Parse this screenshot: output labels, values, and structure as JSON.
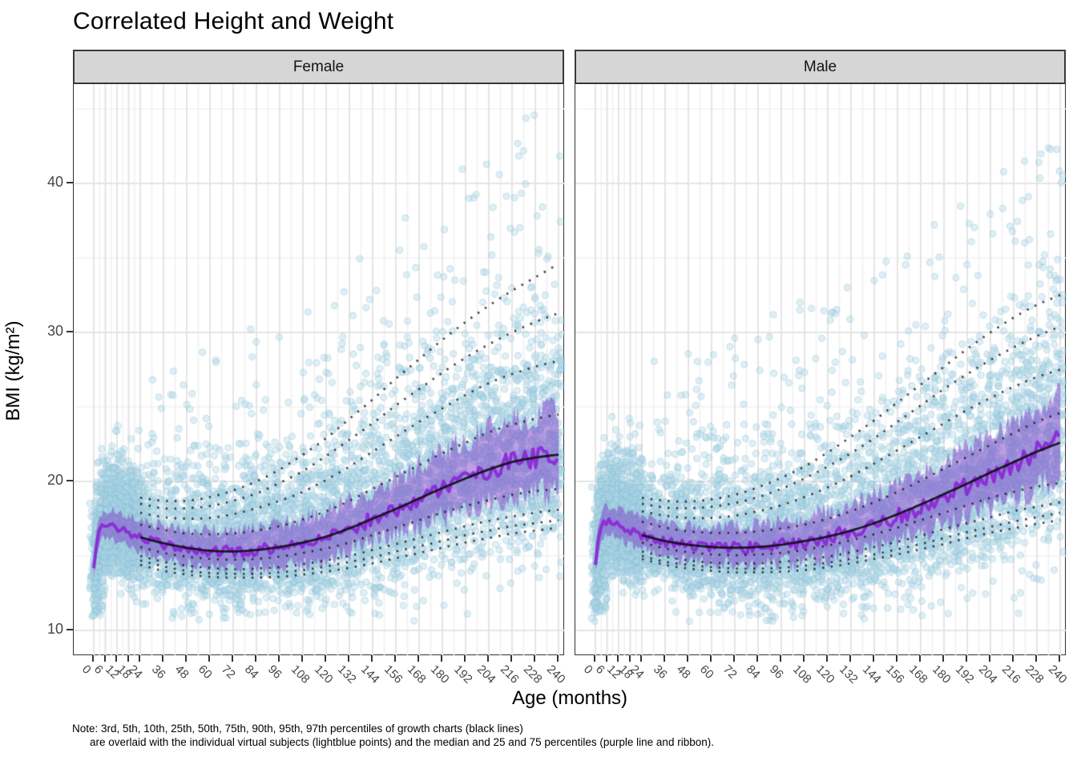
{
  "page": {
    "title": "Correlated Height and Weight",
    "note_line1": "Note: 3rd, 5th, 10th, 25th, 50th, 75th, 90th, 95th, 97th percentiles of growth charts (black lines)",
    "note_line2": "are overlaid with the individual virtual subjects (lightblue points) and the median and 25 and 75 percentiles (purple line and ribbon)."
  },
  "chart_data": {
    "type": "scatter",
    "title": "Correlated Height and Weight",
    "xlabel": "Age (months)",
    "ylabel": "BMI (kg/m²)",
    "facets": [
      {
        "label": "Female"
      },
      {
        "label": "Male"
      }
    ],
    "x_ticks": [
      0,
      6,
      12,
      18,
      24,
      36,
      48,
      60,
      72,
      84,
      96,
      108,
      120,
      132,
      144,
      156,
      168,
      180,
      192,
      204,
      216,
      228,
      240
    ],
    "x_minor": [
      3,
      9,
      15,
      21,
      30,
      42,
      54,
      66,
      78,
      90,
      102,
      114,
      126,
      138,
      150,
      162,
      174,
      186,
      198,
      210,
      222,
      234,
      246
    ],
    "y_ticks": [
      10,
      20,
      30,
      40
    ],
    "y_minor": [
      15,
      25,
      35,
      45
    ],
    "xlim": [
      -10.5,
      243.5
    ],
    "ylim": [
      8.3,
      46.7
    ],
    "grid": true,
    "legend": "none",
    "percentiles_shown": [
      "3rd",
      "5th",
      "10th",
      "25th",
      "50th",
      "75th",
      "90th",
      "95th",
      "97th"
    ],
    "growth_chart_ages": [
      24,
      36,
      48,
      60,
      72,
      84,
      96,
      108,
      120,
      132,
      144,
      156,
      168,
      180,
      192,
      204,
      216,
      228,
      240
    ],
    "growth_chart": {
      "Female": {
        "p3": [
          14.4,
          14.0,
          13.75,
          13.6,
          13.55,
          13.55,
          13.6,
          13.75,
          13.95,
          14.2,
          14.5,
          14.85,
          15.2,
          15.55,
          15.9,
          16.2,
          16.5,
          16.7,
          16.9
        ],
        "p5": [
          14.7,
          14.3,
          14.0,
          13.85,
          13.8,
          13.8,
          13.9,
          14.05,
          14.3,
          14.6,
          14.9,
          15.3,
          15.65,
          16.0,
          16.4,
          16.7,
          17.0,
          17.2,
          17.4
        ],
        "p10": [
          15.0,
          14.6,
          14.35,
          14.2,
          14.1,
          14.15,
          14.25,
          14.45,
          14.7,
          15.0,
          15.4,
          15.8,
          16.2,
          16.6,
          17.0,
          17.35,
          17.65,
          17.9,
          18.1
        ],
        "p25": [
          15.6,
          15.2,
          14.95,
          14.8,
          14.75,
          14.8,
          14.95,
          15.2,
          15.5,
          15.9,
          16.4,
          16.9,
          17.4,
          17.9,
          18.35,
          18.75,
          19.1,
          19.35,
          19.5
        ],
        "p50": [
          16.25,
          15.85,
          15.55,
          15.35,
          15.3,
          15.4,
          15.6,
          15.9,
          16.3,
          16.85,
          17.5,
          18.15,
          18.85,
          19.55,
          20.2,
          20.8,
          21.3,
          21.6,
          21.8
        ],
        "p75": [
          17.1,
          16.75,
          16.5,
          16.45,
          16.5,
          16.7,
          17.0,
          17.45,
          18.0,
          18.7,
          19.5,
          20.3,
          21.1,
          21.9,
          22.6,
          23.3,
          23.8,
          24.2,
          24.5
        ],
        "p90": [
          17.9,
          17.6,
          17.5,
          17.55,
          17.8,
          18.2,
          18.7,
          19.3,
          20.1,
          21.0,
          22.0,
          23.0,
          24.0,
          24.9,
          25.8,
          26.6,
          27.2,
          27.7,
          28.1
        ],
        "p95": [
          18.5,
          18.2,
          18.2,
          18.35,
          18.7,
          19.2,
          19.9,
          20.7,
          21.7,
          22.8,
          23.9,
          25.1,
          26.2,
          27.3,
          28.3,
          29.2,
          30.0,
          30.7,
          31.3
        ],
        "p97": [
          18.9,
          18.7,
          18.7,
          18.95,
          19.4,
          20.0,
          20.8,
          21.8,
          22.9,
          24.2,
          25.5,
          26.9,
          28.2,
          29.5,
          30.7,
          31.8,
          32.8,
          33.7,
          34.6
        ]
      },
      "Male": {
        "p3": [
          14.8,
          14.4,
          14.15,
          14.0,
          13.9,
          13.9,
          13.95,
          14.05,
          14.25,
          14.5,
          14.8,
          15.1,
          15.45,
          15.8,
          16.2,
          16.55,
          16.85,
          17.15,
          17.4
        ],
        "p5": [
          15.0,
          14.6,
          14.4,
          14.25,
          14.15,
          14.15,
          14.2,
          14.35,
          14.55,
          14.8,
          15.1,
          15.45,
          15.8,
          16.2,
          16.6,
          16.95,
          17.3,
          17.6,
          17.9
        ],
        "p10": [
          15.3,
          14.95,
          14.7,
          14.55,
          14.5,
          14.5,
          14.6,
          14.75,
          14.95,
          15.25,
          15.6,
          15.95,
          16.35,
          16.8,
          17.2,
          17.6,
          18.0,
          18.3,
          18.6
        ],
        "p25": [
          15.9,
          15.5,
          15.25,
          15.1,
          15.05,
          15.1,
          15.2,
          15.4,
          15.7,
          16.05,
          16.45,
          16.9,
          17.4,
          17.9,
          18.4,
          18.9,
          19.3,
          19.65,
          19.9
        ],
        "p50": [
          16.4,
          16.0,
          15.75,
          15.6,
          15.55,
          15.6,
          15.75,
          16.0,
          16.3,
          16.7,
          17.2,
          17.8,
          18.45,
          19.15,
          19.85,
          20.6,
          21.3,
          22.0,
          22.6
        ],
        "p75": [
          17.3,
          16.9,
          16.65,
          16.55,
          16.55,
          16.65,
          16.85,
          17.1,
          17.5,
          18.0,
          18.6,
          19.3,
          20.05,
          20.85,
          21.65,
          22.45,
          23.25,
          24.0,
          24.6
        ],
        "p90": [
          18.0,
          17.7,
          17.55,
          17.55,
          17.7,
          18.0,
          18.4,
          18.95,
          19.6,
          20.35,
          21.2,
          22.1,
          23.0,
          23.9,
          24.8,
          25.6,
          26.35,
          27.0,
          27.5
        ],
        "p95": [
          18.5,
          18.25,
          18.2,
          18.3,
          18.55,
          18.95,
          19.5,
          20.2,
          21.0,
          21.9,
          22.9,
          24.0,
          25.1,
          26.2,
          27.2,
          28.15,
          29.0,
          29.75,
          30.4
        ],
        "p97": [
          18.9,
          18.7,
          18.65,
          18.8,
          19.1,
          19.6,
          20.25,
          21.0,
          21.95,
          23.0,
          24.1,
          25.3,
          26.5,
          27.7,
          28.9,
          30.0,
          31.0,
          31.85,
          32.5
        ]
      }
    },
    "subject_median_ages": [
      0,
      2,
      4,
      6,
      9,
      12,
      15,
      18,
      21,
      24,
      30,
      36,
      48,
      60,
      72,
      84,
      96,
      108,
      120,
      132,
      144,
      156,
      168,
      180,
      192,
      204,
      216,
      228,
      240
    ],
    "subject_median": {
      "Female": [
        14.2,
        16.2,
        16.9,
        17.0,
        16.95,
        16.85,
        16.7,
        16.55,
        16.4,
        16.25,
        16.0,
        15.75,
        15.5,
        15.35,
        15.3,
        15.4,
        15.6,
        15.9,
        16.3,
        16.85,
        17.5,
        18.15,
        18.85,
        19.55,
        20.2,
        20.8,
        21.3,
        21.6,
        21.8
      ],
      "Male": [
        14.5,
        16.4,
        17.1,
        17.3,
        17.25,
        17.1,
        16.9,
        16.7,
        16.55,
        16.4,
        16.15,
        15.95,
        15.75,
        15.6,
        15.55,
        15.6,
        15.75,
        15.95,
        16.25,
        16.65,
        17.15,
        17.7,
        18.3,
        18.95,
        19.65,
        20.35,
        21.1,
        21.95,
        22.8
      ]
    },
    "subject_iqr_halfwidth_ages": [
      0,
      24,
      60,
      120,
      168,
      204,
      240
    ],
    "subject_iqr_halfwidth": [
      0.85,
      1.05,
      1.15,
      1.5,
      1.95,
      2.35,
      2.6
    ],
    "scatter_cloud": {
      "n_per_facet": 6500,
      "seeds": {
        "Female": 101,
        "Male": 202
      },
      "bmi_floor": 10.6,
      "bmi_cap": {
        "Female": 46.4,
        "Male": 42.4
      },
      "point_radius": 4.1,
      "alpha": 0.4
    },
    "colors": {
      "point_fill": "#ADD8E6",
      "point_edge": "#7FB4CE",
      "ribbon": "rgba(126,63,201,0.5)",
      "median_line": "#8B2FD6",
      "growth_line": "#101018",
      "dotted_line": "rgba(25,25,25,0.82)",
      "strip_bg": "#D6D6D6",
      "strip_border": "#3A3A3A",
      "panel_border": "#333333",
      "grid_major": "#E4E4E4",
      "grid_minor": "#F0F0F0",
      "axis_text": "#474747",
      "title_text": "#000000"
    }
  }
}
